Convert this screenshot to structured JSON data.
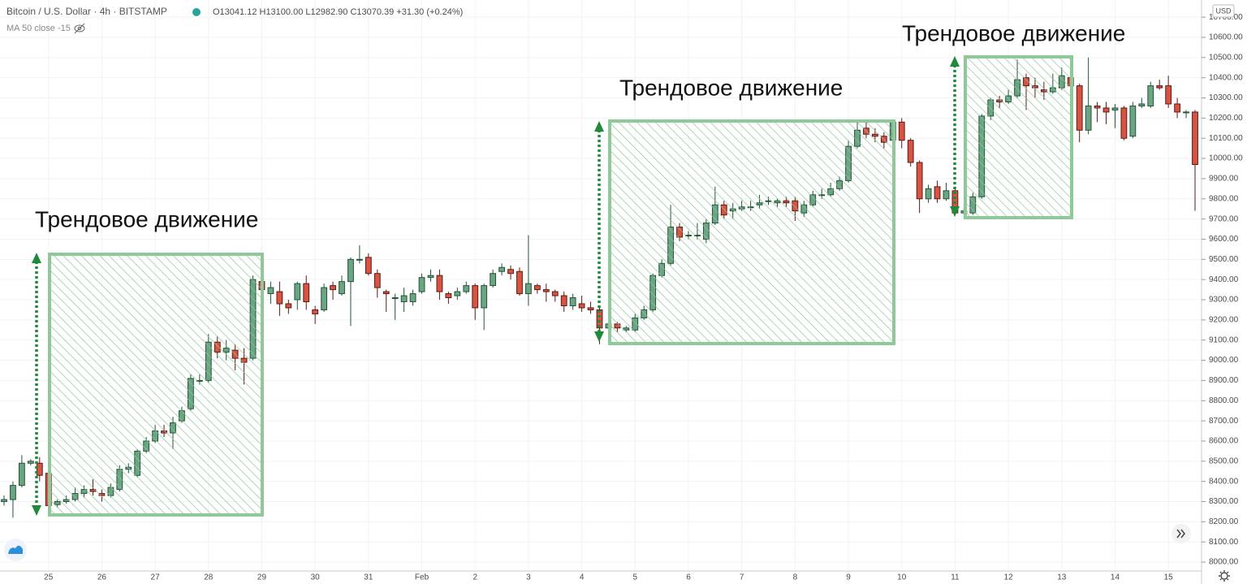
{
  "chart_data": {
    "type": "candlestick",
    "title": "Bitcoin / U.S. Dollar · 4h · BITSTAMP",
    "ohlc_readout": [
      "O13041.12",
      "H13100.00",
      "L12982.90",
      "C13070.39",
      "+31.30 (+0.24%)"
    ],
    "indicator": "MA 50 close -15",
    "currency": "USD",
    "annotations": [
      "Трендовое движение",
      "Трендовое движение",
      "Трендовое движение"
    ],
    "up_color": "#6ba583",
    "down_color": "#d75442",
    "grid": true,
    "ylim": [
      7956,
      10785
    ],
    "yticks": [
      {
        "value": 8000,
        "label": "8000.00"
      },
      {
        "value": 8100,
        "label": "8100.00"
      },
      {
        "value": 8200,
        "label": "8200.00"
      },
      {
        "value": 8300,
        "label": "8300.00"
      },
      {
        "value": 8400,
        "label": "8400.00"
      },
      {
        "value": 8500,
        "label": "8500.00"
      },
      {
        "value": 8600,
        "label": "8600.00"
      },
      {
        "value": 8700,
        "label": "8700.00"
      },
      {
        "value": 8800,
        "label": "8800.00"
      },
      {
        "value": 8900,
        "label": "8900.00"
      },
      {
        "value": 9000,
        "label": "9000.00"
      },
      {
        "value": 9100,
        "label": "9100.00"
      },
      {
        "value": 9200,
        "label": "9200.00"
      },
      {
        "value": 9300,
        "label": "9300.00"
      },
      {
        "value": 9400,
        "label": "9400.00"
      },
      {
        "value": 9500,
        "label": "9500.00"
      },
      {
        "value": 9600,
        "label": "9600.00"
      },
      {
        "value": 9700,
        "label": "9700.00"
      },
      {
        "value": 9800,
        "label": "9800.00"
      },
      {
        "value": 9900,
        "label": "9900.00"
      },
      {
        "value": 10000,
        "label": "10000.00"
      },
      {
        "value": 10100,
        "label": "10100.00"
      },
      {
        "value": 10200,
        "label": "10200.00"
      },
      {
        "value": 10300,
        "label": "10300.00"
      },
      {
        "value": 10400,
        "label": "10400.00"
      },
      {
        "value": 10500,
        "label": "10500.00"
      },
      {
        "value": 10600,
        "label": "10600.00"
      },
      {
        "value": 10700,
        "label": "10700.00"
      }
    ],
    "categories": [
      null,
      null,
      null,
      null,
      null,
      "25",
      null,
      null,
      null,
      null,
      null,
      "26",
      null,
      null,
      null,
      null,
      null,
      "27",
      null,
      null,
      null,
      null,
      null,
      "28",
      null,
      null,
      null,
      null,
      null,
      "29",
      null,
      null,
      null,
      null,
      null,
      "30",
      null,
      null,
      null,
      null,
      null,
      "31",
      null,
      null,
      null,
      null,
      null,
      "Feb",
      null,
      null,
      null,
      null,
      null,
      "2",
      null,
      null,
      null,
      null,
      null,
      "3",
      null,
      null,
      null,
      null,
      null,
      "4",
      null,
      null,
      null,
      null,
      null,
      "5",
      null,
      null,
      null,
      null,
      null,
      "6",
      null,
      null,
      null,
      null,
      null,
      "7",
      null,
      null,
      null,
      null,
      null,
      "8",
      null,
      null,
      null,
      null,
      null,
      "9",
      null,
      null,
      null,
      null,
      null,
      "10",
      null,
      null,
      null,
      null,
      null,
      "11",
      null,
      null,
      null,
      null,
      null,
      "12",
      null,
      null,
      null,
      null,
      null,
      "13",
      null,
      null,
      null,
      null,
      null,
      "14",
      null,
      null,
      null,
      null,
      null,
      "15",
      null,
      null,
      null
    ],
    "open": [
      8300,
      8310,
      8380,
      8490,
      8490,
      8440,
      8285,
      8300,
      8310,
      8340,
      8360,
      8340,
      8330,
      8360,
      8460,
      8430,
      8550,
      8600,
      8650,
      8640,
      8700,
      8760,
      8900,
      8900,
      9090,
      9040,
      9050,
      9010,
      9010,
      9390,
      9330,
      9340,
      9280,
      9300,
      9380,
      9250,
      9250,
      9370,
      9330,
      9390,
      9500,
      9510,
      9430,
      9340,
      9310,
      9290,
      9290,
      9340,
      9410,
      9420,
      9330,
      9320,
      9340,
      9370,
      9260,
      9370,
      9440,
      9450,
      9440,
      9330,
      9370,
      9350,
      9340,
      9320,
      9270,
      9280,
      9260,
      9250,
      9160,
      9180,
      9150,
      9150,
      9210,
      9250,
      9420,
      9480,
      9660,
      9620,
      9620,
      9600,
      9680,
      9770,
      9740,
      9750,
      9760,
      9770,
      9790,
      9780,
      9790,
      9790,
      9730,
      9770,
      9820,
      9820,
      9850,
      9890,
      10060,
      10150,
      10120,
      10110,
      10090,
      10180,
      10090,
      9980,
      9800,
      9860,
      9800,
      9840,
      9730,
      9730,
      9810,
      10210,
      10290,
      10280,
      10310,
      10400,
      10360,
      10340,
      10330,
      10350,
      10400,
      10360,
      10140,
      10260,
      10250,
      10240,
      10250,
      10110,
      10260,
      10260,
      10360,
      10360,
      10270,
      10230,
      10230
    ],
    "high": [
      8330,
      8400,
      8530,
      8510,
      8520,
      8450,
      8310,
      8330,
      8370,
      8380,
      8410,
      8360,
      8390,
      8480,
      8490,
      8560,
      8620,
      8680,
      8680,
      8720,
      8770,
      8930,
      8930,
      9130,
      9120,
      9100,
      9080,
      9060,
      9420,
      9410,
      9390,
      9390,
      9300,
      9390,
      9420,
      9270,
      9380,
      9390,
      9420,
      9510,
      9570,
      9530,
      9450,
      9350,
      9330,
      9360,
      9350,
      9430,
      9450,
      9450,
      9340,
      9360,
      9390,
      9380,
      9380,
      9450,
      9480,
      9470,
      9460,
      9620,
      9380,
      9380,
      9350,
      9340,
      9330,
      9320,
      9290,
      9260,
      9190,
      9190,
      9170,
      9230,
      9270,
      9430,
      9500,
      9770,
      9680,
      9640,
      9680,
      9700,
      9860,
      9790,
      9780,
      9790,
      9790,
      9820,
      9810,
      9800,
      9810,
      9810,
      9790,
      9840,
      9850,
      9880,
      9910,
      10090,
      10180,
      10180,
      10150,
      10130,
      10190,
      10200,
      10100,
      9990,
      9870,
      9890,
      9880,
      9860,
      9760,
      9830,
      10220,
      10300,
      10310,
      10340,
      10490,
      10420,
      10400,
      10380,
      10420,
      10450,
      10410,
      10370,
      10500,
      10280,
      10280,
      10270,
      10260,
      10280,
      10300,
      10380,
      10390,
      10410,
      10300,
      10240,
      10240
    ],
    "low": [
      8280,
      8220,
      8370,
      8480,
      8400,
      8270,
      8270,
      8290,
      8300,
      8320,
      8330,
      8300,
      8320,
      8350,
      8440,
      8420,
      8540,
      8590,
      8620,
      8560,
      8690,
      8750,
      8880,
      8890,
      9010,
      9000,
      8950,
      8880,
      9000,
      9300,
      9280,
      9220,
      9230,
      9250,
      9250,
      9180,
      9240,
      9300,
      9320,
      9170,
      9480,
      9420,
      9310,
      9240,
      9200,
      9240,
      9270,
      9330,
      9390,
      9300,
      9280,
      9300,
      9330,
      9200,
      9150,
      9360,
      9420,
      9400,
      9320,
      9270,
      9330,
      9290,
      9290,
      9240,
      9250,
      9240,
      9230,
      9080,
      9150,
      9140,
      9140,
      9140,
      9200,
      9240,
      9410,
      9470,
      9590,
      9600,
      9600,
      9580,
      9670,
      9700,
      9700,
      9740,
      9740,
      9750,
      9770,
      9760,
      9760,
      9690,
      9710,
      9760,
      9800,
      9810,
      9840,
      9880,
      10050,
      10100,
      10080,
      10050,
      10060,
      10050,
      9960,
      9730,
      9780,
      9780,
      9790,
      9720,
      9720,
      9720,
      9800,
      10190,
      10250,
      10270,
      10300,
      10240,
      10300,
      10290,
      10320,
      10340,
      10330,
      10080,
      10120,
      10180,
      10170,
      10150,
      10090,
      10100,
      10250,
      10250,
      10340,
      10250,
      10200,
      10200,
      9740
    ],
    "close": [
      8310,
      8380,
      8490,
      8500,
      8430,
      8280,
      8300,
      8310,
      8340,
      8360,
      8350,
      8330,
      8370,
      8460,
      8470,
      8550,
      8600,
      8650,
      8640,
      8690,
      8750,
      8910,
      8900,
      9090,
      9040,
      9060,
      9010,
      8990,
      9400,
      9350,
      9360,
      9280,
      9260,
      9380,
      9290,
      9230,
      9360,
      9350,
      9390,
      9500,
      9500,
      9430,
      9360,
      9330,
      9310,
      9320,
      9330,
      9410,
      9420,
      9340,
      9310,
      9340,
      9370,
      9260,
      9370,
      9430,
      9460,
      9430,
      9330,
      9380,
      9350,
      9340,
      9320,
      9270,
      9310,
      9260,
      9250,
      9160,
      9180,
      9160,
      9160,
      9210,
      9250,
      9420,
      9480,
      9660,
      9610,
      9620,
      9620,
      9680,
      9770,
      9720,
      9750,
      9760,
      9760,
      9780,
      9790,
      9790,
      9780,
      9740,
      9770,
      9820,
      9820,
      9850,
      9890,
      10060,
      10140,
      10120,
      10110,
      10080,
      10180,
      10090,
      9980,
      9800,
      9850,
      9800,
      9840,
      9730,
      9740,
      9810,
      10210,
      10290,
      10280,
      10310,
      10390,
      10360,
      10350,
      10330,
      10350,
      10410,
      10360,
      10140,
      10260,
      10250,
      10230,
      10250,
      10100,
      10260,
      10270,
      10360,
      10350,
      10270,
      10230,
      10230,
      9970
    ]
  }
}
